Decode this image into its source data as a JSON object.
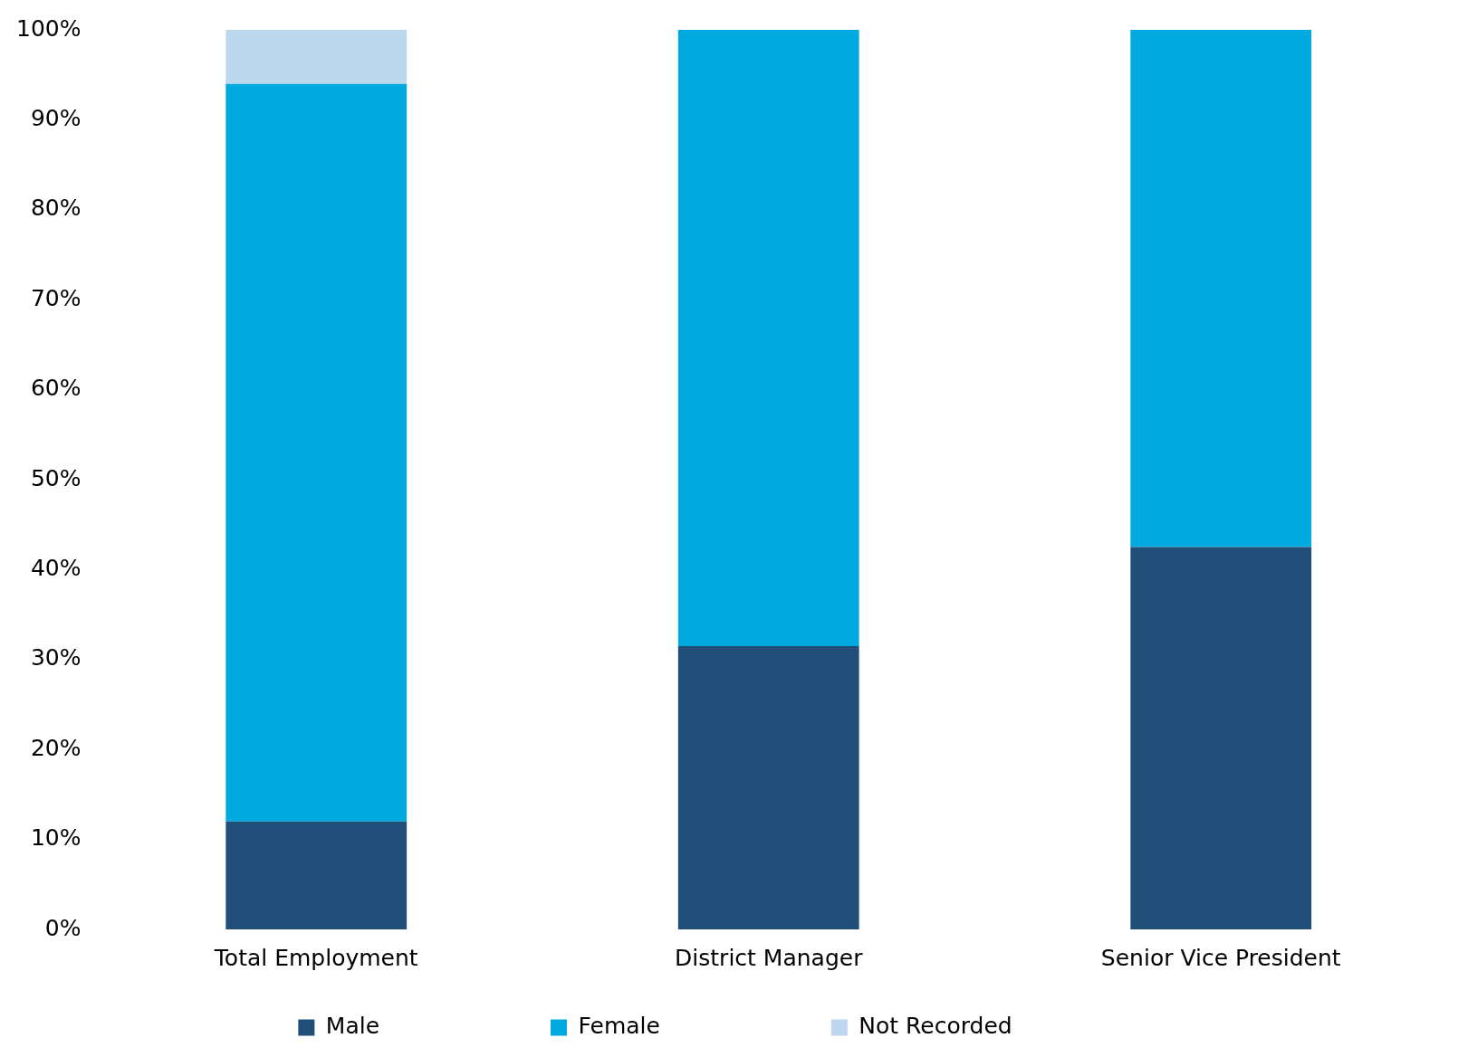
{
  "chart_data": {
    "type": "bar",
    "stacked": true,
    "categories": [
      "Total Employment",
      "District Manager",
      "Senior Vice President"
    ],
    "series": [
      {
        "name": "Male",
        "color": "#1f4e79",
        "values": [
          12,
          31.5,
          42.5
        ]
      },
      {
        "name": "Female",
        "color": "#00a9e0",
        "values": [
          82,
          68.5,
          57.5
        ]
      },
      {
        "name": "Not Recorded",
        "color": "#bdd7ee",
        "values": [
          6,
          0,
          0
        ]
      }
    ],
    "ylim": [
      0,
      100
    ],
    "yticks": [
      {
        "value": 0,
        "label": "0%"
      },
      {
        "value": 10,
        "label": "10%"
      },
      {
        "value": 20,
        "label": "20%"
      },
      {
        "value": 30,
        "label": "30%"
      },
      {
        "value": 40,
        "label": "40%"
      },
      {
        "value": 50,
        "label": "50%"
      },
      {
        "value": 60,
        "label": "60%"
      },
      {
        "value": 70,
        "label": "70%"
      },
      {
        "value": 80,
        "label": "80%"
      },
      {
        "value": 90,
        "label": "90%"
      },
      {
        "value": 100,
        "label": "100%"
      }
    ],
    "grid": false,
    "legend": "bottom"
  }
}
